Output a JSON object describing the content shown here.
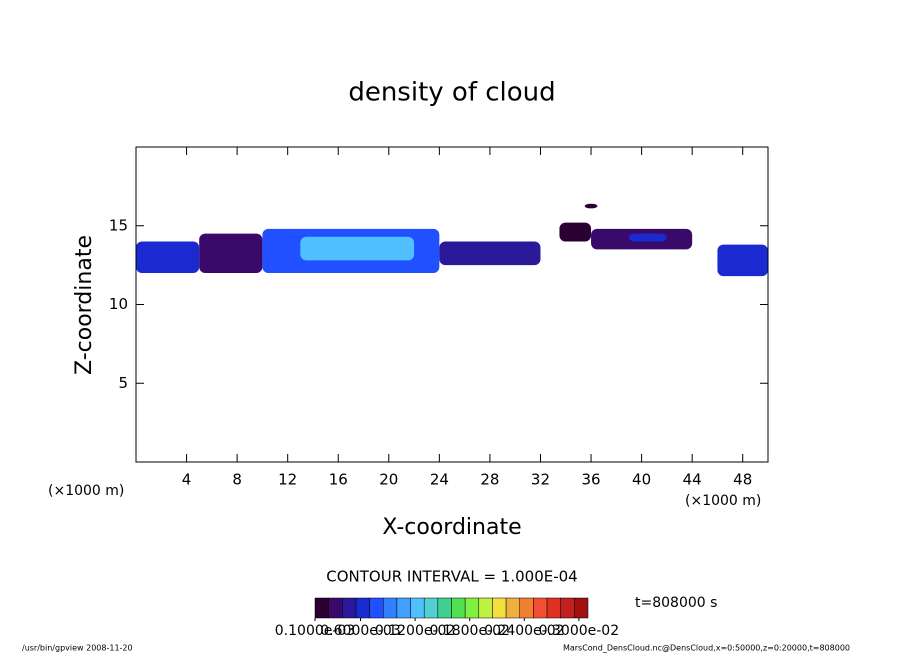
{
  "chart_data": {
    "type": "contour",
    "title": "density of cloud",
    "x_label": "X-coordinate",
    "y_label": "Z-coordinate",
    "x_unit": "(×1000 m)",
    "y_unit": "(×1000 m)",
    "xlim": [
      0,
      50
    ],
    "ylim": [
      0,
      20
    ],
    "xticks": [
      4,
      8,
      12,
      16,
      20,
      24,
      28,
      32,
      36,
      40,
      44,
      48
    ],
    "yticks": [
      5,
      10,
      15
    ],
    "regions": [
      {
        "x": [
          0,
          5
        ],
        "z": [
          12,
          14
        ],
        "value": 0.0006
      },
      {
        "x": [
          5,
          10
        ],
        "z": [
          12,
          14.5
        ],
        "value": 0.0003
      },
      {
        "x": [
          10,
          24
        ],
        "z": [
          12,
          14.8
        ],
        "value": 0.0008
      },
      {
        "x": [
          13,
          22
        ],
        "z": [
          12.8,
          14.3
        ],
        "value": 0.0012
      },
      {
        "x": [
          24,
          32
        ],
        "z": [
          12.5,
          14
        ],
        "value": 0.0004
      },
      {
        "x": [
          33.5,
          36
        ],
        "z": [
          14,
          15.2
        ],
        "value": 0.0002
      },
      {
        "x": [
          35.5,
          36.5
        ],
        "z": [
          16.1,
          16.4
        ],
        "value": 0.0002
      },
      {
        "x": [
          36,
          44
        ],
        "z": [
          13.5,
          14.8
        ],
        "value": 0.0003
      },
      {
        "x": [
          39,
          42
        ],
        "z": [
          14,
          14.5
        ],
        "value": 0.0007
      },
      {
        "x": [
          46,
          50
        ],
        "z": [
          11.8,
          13.8
        ],
        "value": 0.0006
      }
    ],
    "contour_interval": "CONTOUR INTERVAL = 1.000E-04",
    "time_label": "t=808000 s",
    "colorbar": {
      "lim": [
        0.0001,
        0.0031
      ],
      "colors": [
        "#2a0033",
        "#3a0a6a",
        "#2a1a9a",
        "#1a2ad0",
        "#2050ff",
        "#3080ff",
        "#40a0ff",
        "#50c0ff",
        "#50d0d0",
        "#40d090",
        "#50e050",
        "#80f040",
        "#c0f040",
        "#f0e040",
        "#f0b040",
        "#f08030",
        "#f05030",
        "#e03020",
        "#c02020",
        "#a01010"
      ],
      "ticks": [
        {
          "value": 0.0001,
          "label": "0.1000e-03"
        },
        {
          "value": 0.0006,
          "label": "0.6000e-03"
        },
        {
          "value": 0.0012,
          "label": "0.1200e-02"
        },
        {
          "value": 0.0018,
          "label": "0.1800e-02"
        },
        {
          "value": 0.0024,
          "label": "0.2400e-02"
        },
        {
          "value": 0.003,
          "label": "0.3000e-02"
        }
      ]
    },
    "footer_left": "/usr/bin/gpview   2008-11-20",
    "footer_right": "MarsCond_DensCloud.nc@DensCloud,x=0:50000,z=0:20000,t=808000"
  }
}
